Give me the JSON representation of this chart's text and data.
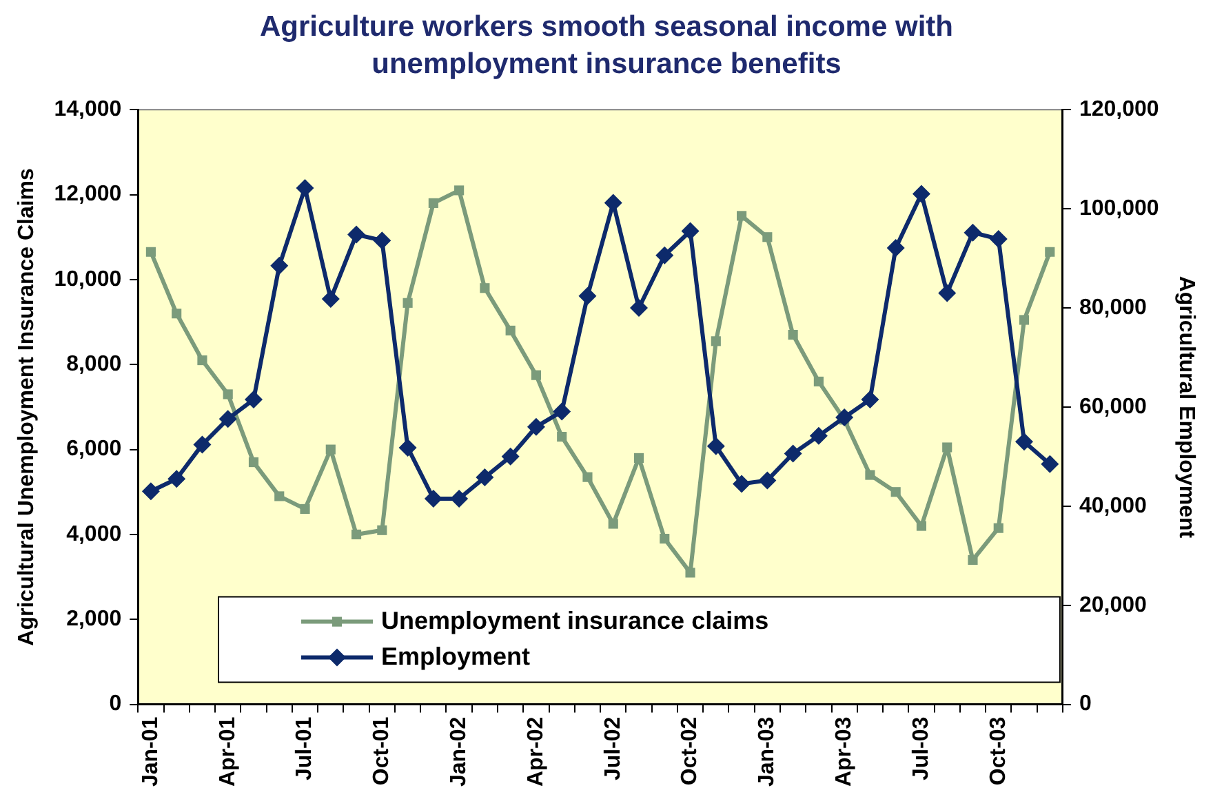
{
  "chart_data": {
    "type": "line",
    "title": "Agriculture workers smooth seasonal income with unemployment insurance benefits",
    "ylabel": "Agricultural Unemployment Insurance Claims",
    "y2label": "Agricultural Employment",
    "categories": [
      "Jan-01",
      null,
      null,
      "Apr-01",
      null,
      null,
      "Jul-01",
      null,
      null,
      "Oct-01",
      null,
      null,
      "Jan-02",
      null,
      null,
      "Apr-02",
      null,
      null,
      "Jul-02",
      null,
      null,
      "Oct-02",
      null,
      null,
      "Jan-03",
      null,
      null,
      "Apr-03",
      null,
      null,
      "Jul-03",
      null,
      null,
      "Oct-03",
      null,
      null
    ],
    "series": [
      {
        "name": "Unemployment insurance claims",
        "color": "#7b9b7b",
        "marker": "square",
        "values": [
          10650,
          9200,
          8100,
          7300,
          5700,
          4900,
          4600,
          6000,
          4000,
          4100,
          9450,
          11800,
          12100,
          9800,
          8800,
          7750,
          6300,
          5350,
          4250,
          5800,
          3900,
          3100,
          8550,
          11500,
          11000,
          8700,
          7600,
          6700,
          5400,
          5000,
          4200,
          6050,
          3400,
          4150,
          9050,
          10650
        ]
      },
      {
        "name": "Employment",
        "color": "#0d2a6b",
        "marker": "diamond",
        "axis": "y2",
        "values": [
          43000,
          45500,
          52400,
          57600,
          61500,
          88500,
          104200,
          81800,
          94800,
          93600,
          51800,
          41500,
          41500,
          45800,
          50000,
          56000,
          59100,
          82400,
          101200,
          80000,
          90600,
          95500,
          52100,
          44500,
          45200,
          50600,
          54200,
          57900,
          61500,
          92100,
          103000,
          83000,
          95200,
          93900,
          53000,
          48500
        ]
      }
    ],
    "ylim": [
      0,
      14000
    ],
    "yticks": [
      0,
      {
        "value": 2000,
        "label": "2,000"
      },
      {
        "value": 4000,
        "label": "4,000"
      },
      {
        "value": 6000,
        "label": "6,000"
      },
      {
        "value": 8000,
        "label": "8,000"
      },
      {
        "value": 10000,
        "label": "10,000"
      },
      {
        "value": 12000,
        "label": "12,000"
      },
      {
        "value": 14000,
        "label": "14,000"
      }
    ],
    "y2lim": [
      0,
      120000
    ],
    "y2ticks": [
      0,
      {
        "value": 20000,
        "label": "20,000"
      },
      {
        "value": 40000,
        "label": "40,000"
      },
      {
        "value": 60000,
        "label": "60,000"
      },
      {
        "value": 80000,
        "label": "80,000"
      },
      {
        "value": 100000,
        "label": "100,000"
      },
      {
        "value": 120000,
        "label": "120,000"
      }
    ],
    "grid": false,
    "legend": "bottom",
    "line_style": "solid"
  }
}
